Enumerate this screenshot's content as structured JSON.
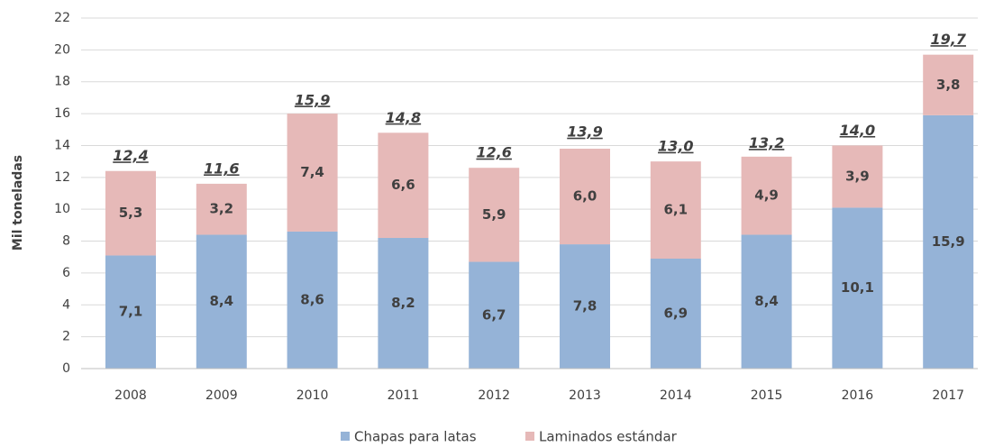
{
  "chart_data": {
    "type": "stacked-bar",
    "ylabel": "Mil toneladas",
    "categories": [
      "2008",
      "2009",
      "2010",
      "2011",
      "2012",
      "2013",
      "2014",
      "2015",
      "2016",
      "2017"
    ],
    "series": [
      {
        "name": "Chapas para latas",
        "color": "#95b3d7",
        "values": [
          7.1,
          8.4,
          8.6,
          8.2,
          6.7,
          7.8,
          6.9,
          8.4,
          10.1,
          15.9
        ],
        "value_labels": [
          "7,1",
          "8,4",
          "8,6",
          "8,2",
          "6,7",
          "7,8",
          "6,9",
          "8,4",
          "10,1",
          "15,9"
        ]
      },
      {
        "name": "Laminados estándar",
        "color": "#e6b9b8",
        "values": [
          5.3,
          3.2,
          7.4,
          6.6,
          5.9,
          6.0,
          6.1,
          4.9,
          3.9,
          3.8
        ],
        "value_labels": [
          "5,3",
          "3,2",
          "7,4",
          "6,6",
          "5,9",
          "6,0",
          "6,1",
          "4,9",
          "3,9",
          "3,8"
        ]
      }
    ],
    "totals": [
      12.4,
      11.6,
      15.9,
      14.8,
      12.6,
      13.9,
      13.0,
      13.2,
      14.0,
      19.7
    ],
    "total_labels": [
      "12,4",
      "11,6",
      "15,9",
      "14,8",
      "12,6",
      "13,9",
      "13,0",
      "13,2",
      "14,0",
      "19,7"
    ],
    "ylim": [
      0,
      22
    ],
    "yticks": [
      0,
      2,
      4,
      6,
      8,
      10,
      12,
      14,
      16,
      18,
      20,
      22
    ],
    "grid": true,
    "legend": "bottom"
  }
}
